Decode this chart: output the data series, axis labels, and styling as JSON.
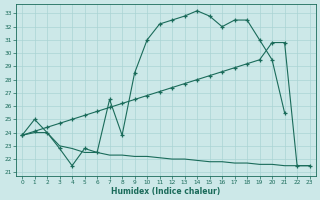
{
  "xlabel": "Humidex (Indice chaleur)",
  "bg_color": "#cce8e8",
  "line_color": "#1a6b5a",
  "grid_color": "#aad4d4",
  "xlim": [
    -0.5,
    23.5
  ],
  "ylim": [
    20.7,
    33.7
  ],
  "xticks": [
    0,
    1,
    2,
    3,
    4,
    5,
    6,
    7,
    8,
    9,
    10,
    11,
    12,
    13,
    14,
    15,
    16,
    17,
    18,
    19,
    20,
    21,
    22,
    23
  ],
  "yticks": [
    21,
    22,
    23,
    24,
    25,
    26,
    27,
    28,
    29,
    30,
    31,
    32,
    33
  ],
  "line1_x": [
    0,
    1,
    2,
    3,
    4,
    5,
    6,
    7,
    8,
    9,
    10,
    11,
    12,
    13,
    14,
    15,
    16,
    17,
    18,
    19,
    20,
    21
  ],
  "line1_y": [
    23.8,
    25.0,
    24.0,
    22.8,
    21.5,
    22.8,
    22.5,
    26.5,
    23.8,
    28.5,
    31.0,
    32.2,
    32.5,
    32.8,
    33.2,
    32.8,
    32.0,
    32.5,
    32.5,
    31.0,
    29.5,
    25.5
  ],
  "line2_x": [
    0,
    1,
    2,
    3,
    4,
    5,
    6,
    7,
    8,
    9,
    10,
    11,
    12,
    13,
    14,
    15,
    16,
    17,
    18,
    19,
    20,
    21,
    22,
    23
  ],
  "line2_y": [
    23.8,
    24.1,
    24.4,
    24.7,
    25.0,
    25.3,
    25.6,
    25.9,
    26.2,
    26.5,
    26.8,
    27.1,
    27.4,
    27.7,
    28.0,
    28.3,
    28.6,
    28.9,
    29.2,
    29.5,
    30.8,
    30.8,
    21.5,
    21.5
  ],
  "line3_x": [
    0,
    1,
    2,
    3,
    4,
    5,
    6,
    7,
    8,
    9,
    10,
    11,
    12,
    13,
    14,
    15,
    16,
    17,
    18,
    19,
    20,
    21,
    22,
    23
  ],
  "line3_y": [
    23.8,
    24.0,
    24.0,
    23.0,
    22.8,
    22.5,
    22.5,
    22.3,
    22.3,
    22.2,
    22.2,
    22.1,
    22.0,
    22.0,
    21.9,
    21.8,
    21.8,
    21.7,
    21.7,
    21.6,
    21.6,
    21.5,
    21.5,
    21.5
  ]
}
